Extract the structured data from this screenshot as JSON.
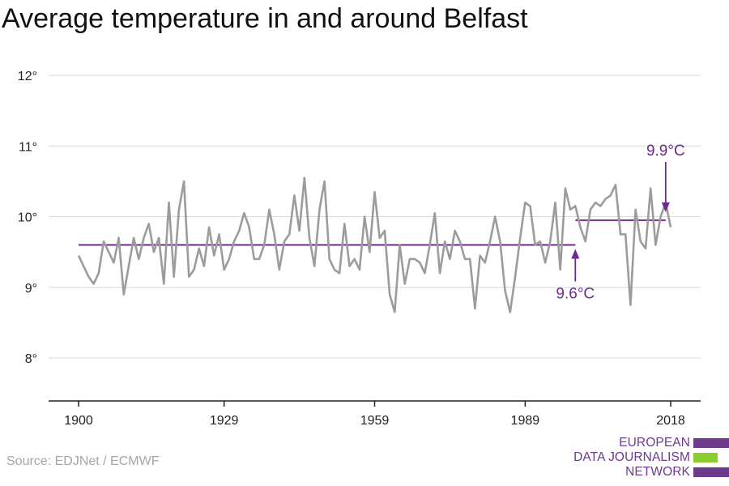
{
  "title": "Average temperature in and around Belfast",
  "source": "Source: EDJNet / ECMWF",
  "logo": {
    "lines": [
      "EUROPEAN",
      "DATA JOURNALISM",
      "NETWORK"
    ],
    "purple": "#6d3a8c",
    "green": "#8ccc2f"
  },
  "colors": {
    "series": "#9c9c9c",
    "accent": "#6d2a8c",
    "grid": "#d9d9d9",
    "axis": "#222222"
  },
  "chart_data": {
    "type": "line",
    "x_ticks": [
      "1900",
      "1929",
      "1959",
      "1989",
      "2018"
    ],
    "y_ticks": [
      "8°",
      "9°",
      "10°",
      "11°",
      "12°"
    ],
    "ylim": [
      7.4,
      12.25
    ],
    "xlim": [
      1900,
      2018
    ],
    "grid": true,
    "series": [
      {
        "x_start": 1900,
        "values": [
          9.45,
          9.3,
          9.15,
          9.05,
          9.2,
          9.65,
          9.5,
          9.35,
          9.7,
          8.9,
          9.3,
          9.7,
          9.4,
          9.7,
          9.9,
          9.5,
          9.7,
          9.05,
          10.2,
          9.15,
          10.1,
          10.5,
          9.15,
          9.25,
          9.55,
          9.3,
          9.85,
          9.45,
          9.75,
          9.25,
          9.4,
          9.65,
          9.8,
          10.05,
          9.85,
          9.4,
          9.4,
          9.6,
          10.1,
          9.75,
          9.25,
          9.65,
          9.75,
          10.3,
          9.8,
          10.55,
          9.7,
          9.3,
          10.1,
          10.5,
          9.4,
          9.25,
          9.2,
          9.9,
          9.3,
          9.4,
          9.25,
          10.0,
          9.5,
          10.35,
          9.7,
          9.8,
          8.9,
          8.65,
          9.6,
          9.05,
          9.4,
          9.4,
          9.35,
          9.2,
          9.6,
          10.05,
          9.2,
          9.65,
          9.4,
          9.8,
          9.65,
          9.4,
          9.4,
          8.7,
          9.45,
          9.35,
          9.65,
          10.0,
          9.65,
          8.95,
          8.65,
          9.15,
          9.7,
          10.2,
          10.15,
          9.6,
          9.65,
          9.35,
          9.65,
          10.2,
          9.25,
          10.4,
          10.1,
          10.15,
          9.85,
          9.65,
          10.1,
          10.2,
          10.15,
          10.25,
          10.3,
          10.45,
          9.75,
          9.75,
          8.75,
          10.1,
          9.65,
          9.55,
          10.4,
          9.6,
          10.0,
          10.2,
          9.85
        ]
      }
    ],
    "reference_lines": [
      {
        "label": "9.6°C",
        "value": 9.6,
        "x_range": [
          1900,
          1999
        ],
        "marker_x": 1999
      },
      {
        "label": "9.9°C",
        "value": 9.95,
        "x_range": [
          1999,
          2017
        ],
        "marker_x": 2017
      }
    ]
  }
}
